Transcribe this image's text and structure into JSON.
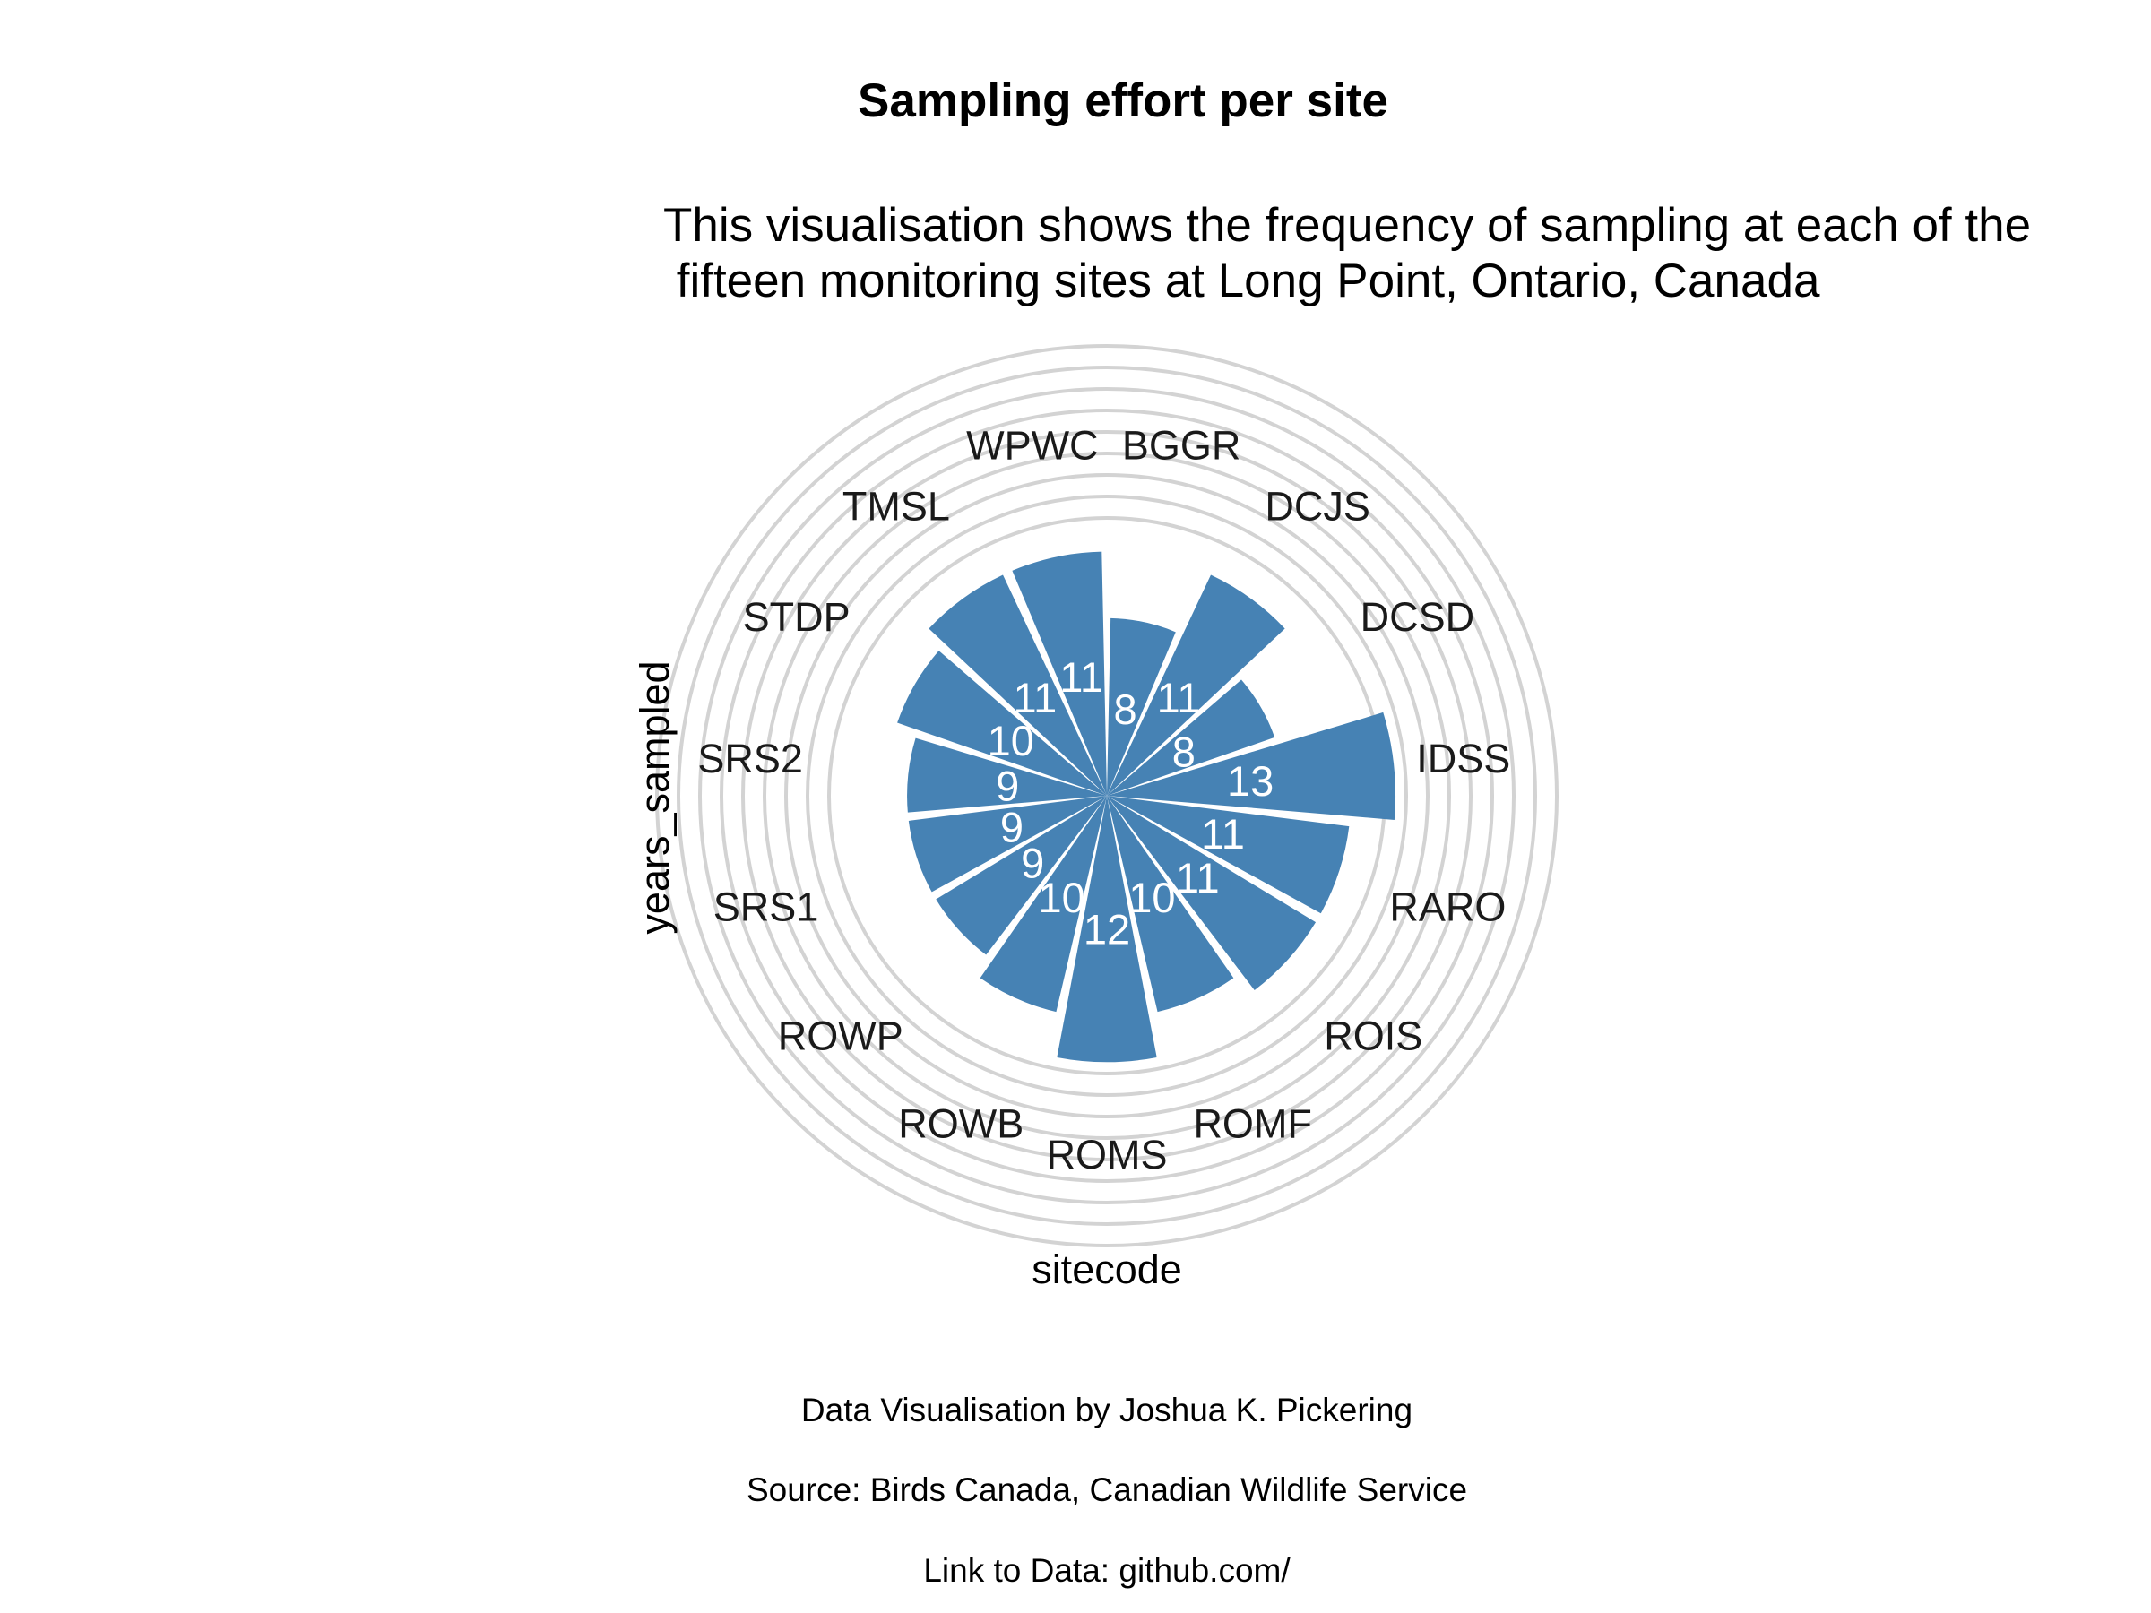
{
  "colors": {
    "bar": "#4682b4",
    "grid": "#d3d3d3",
    "value_text": "#ffffff",
    "background": "#ffffff"
  },
  "chart_data": {
    "type": "bar",
    "coordinate_system": "polar",
    "title": "Sampling effort per site",
    "subtitle_lines": [
      "This visualisation shows the frequency of sampling at each of the",
      " fifteen monitoring sites at Long Point, Ontario, Canada"
    ],
    "xlabel": "sitecode",
    "ylabel": "years_sampled",
    "categories": [
      "BGGR",
      "DCJS",
      "DCSD",
      "IDSS",
      "RARO",
      "ROIS",
      "ROMF",
      "ROMS",
      "ROWB",
      "ROWP",
      "SRS1",
      "SRS2",
      "STDP",
      "TMSL",
      "WPWC"
    ],
    "values": [
      8,
      11,
      8,
      13,
      11,
      11,
      10,
      12,
      10,
      9,
      9,
      9,
      10,
      11,
      11
    ],
    "ylim": [
      0,
      13
    ],
    "grid": true,
    "value_labels_shown": true,
    "caption_lines": [
      "Data Visualisation by Joshua K. Pickering",
      "Source: Birds Canada, Canadian Wildlife Service",
      "Link to Data: github.com/"
    ]
  }
}
